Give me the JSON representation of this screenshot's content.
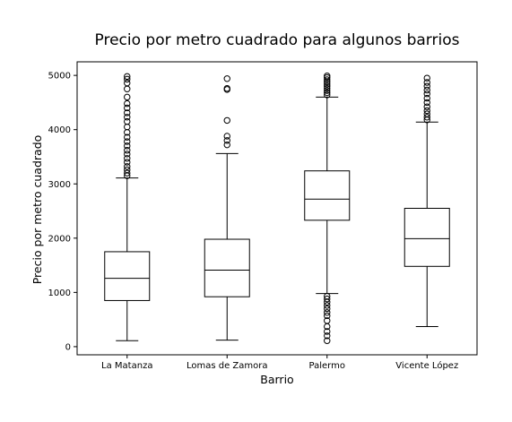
{
  "chart_data": {
    "type": "box",
    "title": "Precio por metro cuadrado para algunos barrios",
    "xlabel": "Barrio",
    "ylabel": "Precio por metro cuadrado",
    "ylim": [
      -150,
      5250
    ],
    "yticks": [
      0,
      1000,
      2000,
      3000,
      4000,
      5000
    ],
    "grid": false,
    "categories": [
      "La Matanza",
      "Lomas de Zamora",
      "Palermo",
      "Vicente López"
    ],
    "boxes": [
      {
        "category": "La Matanza",
        "whisker_low": 110,
        "q1": 850,
        "median": 1260,
        "q3": 1750,
        "whisker_high": 3110,
        "outliers": [
          3150,
          3200,
          3260,
          3320,
          3400,
          3470,
          3550,
          3620,
          3700,
          3780,
          3860,
          3950,
          4050,
          4150,
          4230,
          4310,
          4400,
          4480,
          4600,
          4750,
          4860,
          4930,
          4980
        ]
      },
      {
        "category": "Lomas de Zamora",
        "whisker_low": 120,
        "q1": 920,
        "median": 1410,
        "q3": 1980,
        "whisker_high": 3560,
        "outliers": [
          3720,
          3800,
          3880,
          4170,
          4740,
          4760,
          4940
        ]
      },
      {
        "category": "Palermo",
        "whisker_low": 980,
        "q1": 2330,
        "median": 2720,
        "q3": 3240,
        "whisker_high": 4600,
        "outliers": [
          110,
          200,
          280,
          370,
          480,
          570,
          630,
          700,
          760,
          820,
          880,
          930,
          4640,
          4680,
          4720,
          4760,
          4800,
          4840,
          4880,
          4920,
          4960,
          4990
        ]
      },
      {
        "category": "Vicente López",
        "whisker_low": 370,
        "q1": 1480,
        "median": 1990,
        "q3": 2550,
        "whisker_high": 4140,
        "outliers": [
          4180,
          4230,
          4290,
          4350,
          4420,
          4500,
          4580,
          4660,
          4730,
          4800,
          4870,
          4950
        ]
      }
    ]
  }
}
